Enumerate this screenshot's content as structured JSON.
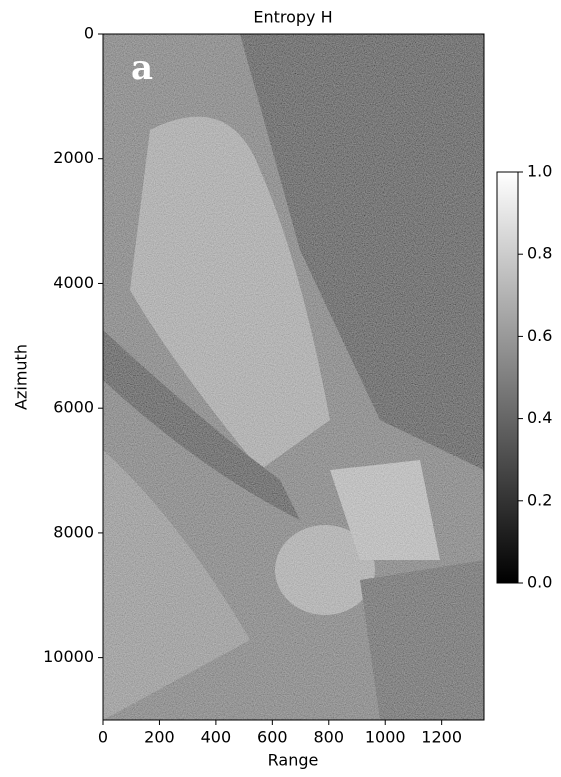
{
  "chart_data": {
    "type": "image",
    "title": "Entropy  H",
    "xlabel": "Range",
    "ylabel": "Azimuth",
    "annotation": "a",
    "xlim": [
      0,
      1350
    ],
    "xticks": [
      0,
      200,
      400,
      600,
      800,
      1000,
      1200
    ],
    "ylim": [
      11000,
      0
    ],
    "yticks": [
      0,
      2000,
      4000,
      6000,
      8000,
      10000
    ],
    "colormap": [
      "#000000",
      "#ffffff"
    ],
    "clim": [
      0,
      1
    ],
    "cticks": [
      {
        "value": 0,
        "label": "0.0"
      },
      {
        "value": 0.2,
        "label": "0.2"
      },
      {
        "value": 0.4,
        "label": "0.4"
      },
      {
        "value": 0.6,
        "label": "0.6"
      },
      {
        "value": 0.8,
        "label": "0.8"
      },
      {
        "value": 1,
        "label": "1.0"
      }
    ]
  }
}
